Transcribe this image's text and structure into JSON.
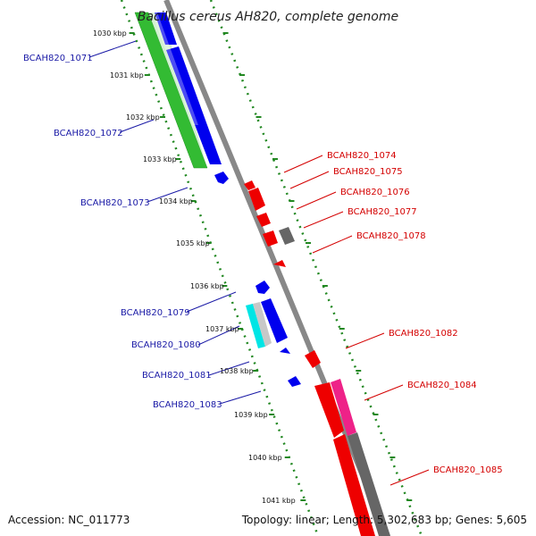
{
  "title": "Bacillus cereus AH820, complete genome",
  "footer": {
    "accession": "Accession: NC_011773",
    "topology": "Topology: linear; Length: 5,302,683 bp; Genes: 5,605"
  },
  "colors": {
    "blue_gene": "#0000ee",
    "green_gene": "#33bb33",
    "red_gene": "#ee0000",
    "gray_gene": "#666666",
    "cyan_gene": "#00e5e5",
    "pink_gene": "#ee2288",
    "light_gray_gene": "#c8c8c8",
    "axis_gray": "#888888",
    "tick_green": "#228822",
    "label_blue": "#1a1aa6",
    "label_red": "#d40000"
  },
  "ruler": {
    "ticks": [
      "1030 kbp",
      "1031 kbp",
      "1032 kbp",
      "1033 kbp",
      "1034 kbp",
      "1035 kbp",
      "1036 kbp",
      "1037 kbp",
      "1038 kbp",
      "1039 kbp",
      "1040 kbp",
      "1041 kbp"
    ]
  },
  "genes_left": [
    {
      "name": "BCAH820_1071"
    },
    {
      "name": "BCAH820_1072"
    },
    {
      "name": "BCAH820_1073"
    },
    {
      "name": "BCAH820_1079"
    },
    {
      "name": "BCAH820_1080"
    },
    {
      "name": "BCAH820_1081"
    },
    {
      "name": "BCAH820_1083"
    }
  ],
  "genes_right": [
    {
      "name": "BCAH820_1074"
    },
    {
      "name": "BCAH820_1075"
    },
    {
      "name": "BCAH820_1076"
    },
    {
      "name": "BCAH820_1077"
    },
    {
      "name": "BCAH820_1078"
    },
    {
      "name": "BCAH820_1082"
    },
    {
      "name": "BCAH820_1084"
    },
    {
      "name": "BCAH820_1085"
    }
  ]
}
